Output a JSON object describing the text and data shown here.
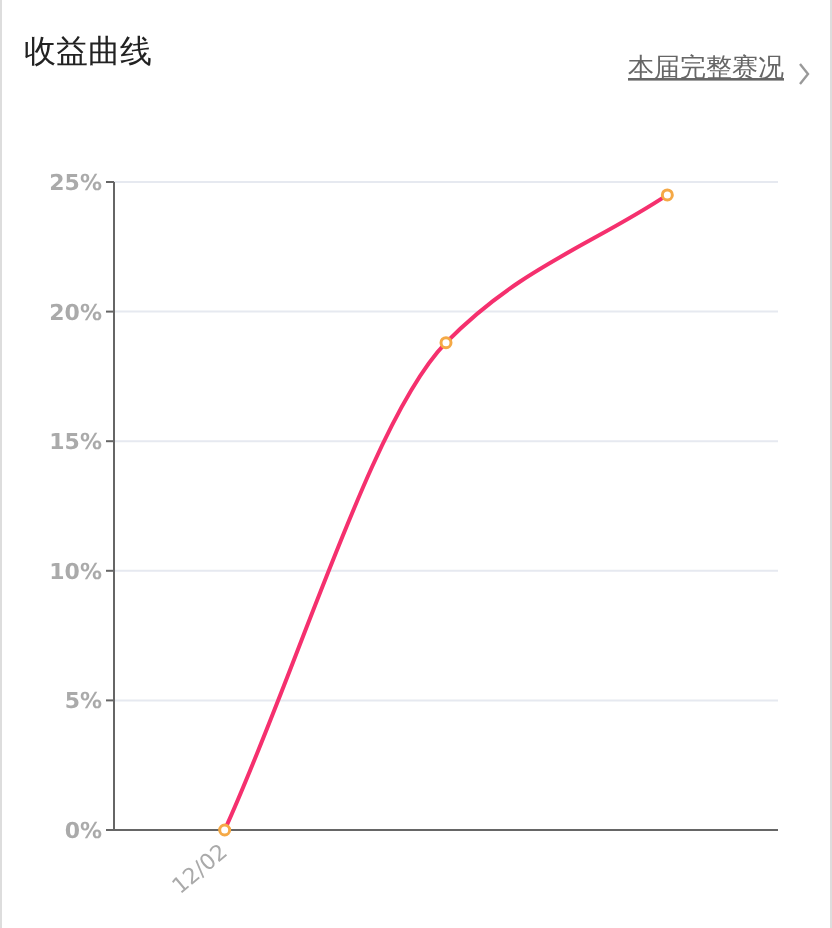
{
  "chart_data": {
    "type": "line",
    "title": "收益曲线",
    "annotations": [
      "本届完整赛况"
    ],
    "categories": [
      "12/02",
      null,
      null
    ],
    "series": [
      {
        "color": "#f5306e",
        "values": [
          0,
          18.8,
          24.5
        ]
      }
    ],
    "ylim": [
      0,
      25
    ],
    "yticks": [
      {
        "value": 0,
        "label": "0%"
      },
      {
        "value": 5,
        "label": "5%"
      },
      {
        "value": 10,
        "label": "10%"
      },
      {
        "value": 15,
        "label": "15%"
      },
      {
        "value": 20,
        "label": "20%"
      },
      {
        "value": 25,
        "label": "25%"
      }
    ],
    "grid": "y",
    "marker": "circle",
    "line_style": "solid"
  }
}
